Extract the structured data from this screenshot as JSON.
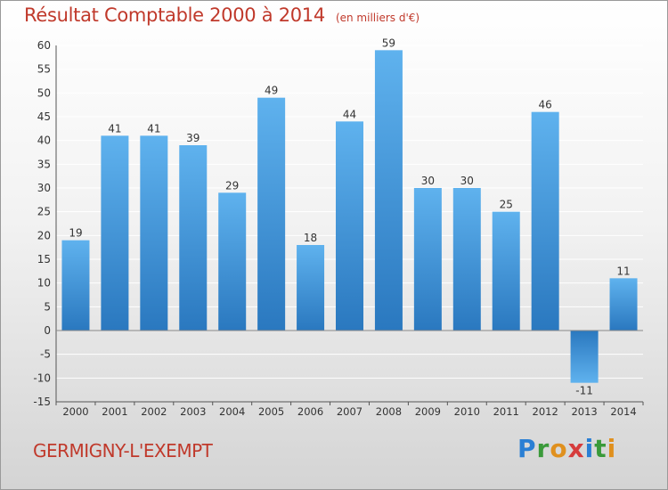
{
  "chart_data": {
    "type": "bar",
    "title": "Résultat Comptable 2000 à 2014",
    "subtitle": "(en milliers d'€)",
    "categories": [
      "2000",
      "2001",
      "2002",
      "2003",
      "2004",
      "2005",
      "2006",
      "2007",
      "2008",
      "2009",
      "2010",
      "2011",
      "2012",
      "2013",
      "2014"
    ],
    "values": [
      19,
      41,
      41,
      39,
      29,
      49,
      18,
      44,
      59,
      30,
      30,
      25,
      46,
      -11,
      11
    ],
    "ylim": [
      -15,
      60
    ],
    "yticks": [
      -15,
      -10,
      -5,
      0,
      5,
      10,
      15,
      20,
      25,
      30,
      35,
      40,
      45,
      50,
      55,
      60
    ],
    "grid": true,
    "bar_color": "#3a8fd6",
    "grid_color": "#ffffff"
  },
  "footer": {
    "commune": "GERMIGNY-L'EXEMPT",
    "logo_text": "Proxiti"
  }
}
